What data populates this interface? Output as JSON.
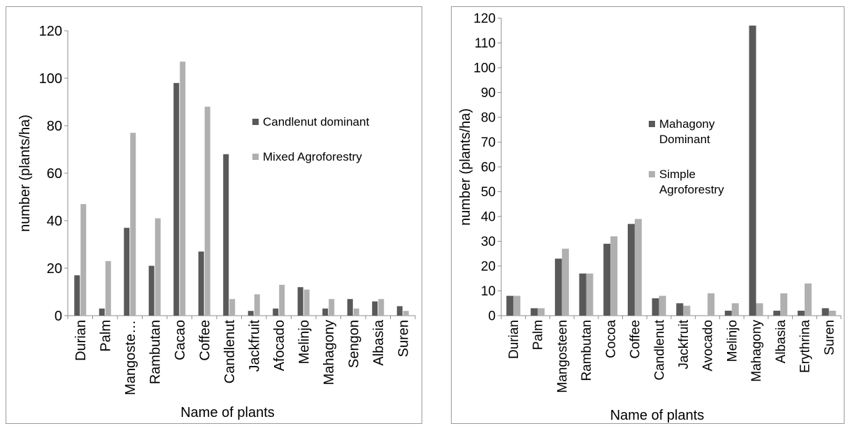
{
  "colors": {
    "dark": "#595959",
    "light": "#b0b0b0",
    "axis": "#8c8c8c"
  },
  "chart_data": [
    {
      "type": "bar",
      "xlabel": "Name of plants",
      "ylabel": "number  (plants/ha)",
      "ylim": [
        0,
        120
      ],
      "yticks": [
        0,
        20,
        40,
        60,
        80,
        100,
        120
      ],
      "grid": false,
      "legend_position": "right",
      "categories": [
        "Durian",
        "Palm",
        "Mangoste…",
        "Rambutan",
        "Cacao",
        "Coffee",
        "Candlenut",
        "Jackfruit",
        "Afocado",
        "Melinjo",
        "Mahagony",
        "Sengon",
        "Albasia",
        "Suren"
      ],
      "series": [
        {
          "name": "Candlenut dominant",
          "color": "#595959",
          "values": [
            17,
            3,
            37,
            21,
            98,
            27,
            68,
            2,
            3,
            12,
            3,
            7,
            6,
            4
          ]
        },
        {
          "name": "Mixed Agroforestry",
          "color": "#b0b0b0",
          "values": [
            47,
            23,
            77,
            41,
            107,
            88,
            7,
            9,
            13,
            11,
            7,
            3,
            7,
            2
          ]
        }
      ]
    },
    {
      "type": "bar",
      "xlabel": "Name of plants",
      "ylabel": "number (plants/ha)",
      "ylim": [
        0,
        120
      ],
      "yticks": [
        0,
        10,
        20,
        30,
        40,
        50,
        60,
        70,
        80,
        90,
        100,
        110,
        120
      ],
      "grid": false,
      "legend_position": "right",
      "categories": [
        "Durian",
        "Palm",
        "Mangosteen",
        "Rambutan",
        "Cocoa",
        "Coffee",
        "Candlenut",
        "Jackfruit",
        "Avocado",
        "Melinjo",
        "Mahagony",
        "Albasia",
        "Erythrina",
        "Suren"
      ],
      "series": [
        {
          "name": "Mahagony Dominant",
          "legend_lines": [
            "Mahagony",
            "Dominant"
          ],
          "color": "#595959",
          "values": [
            8,
            3,
            23,
            17,
            29,
            37,
            7,
            5,
            0,
            2,
            117,
            2,
            2,
            3
          ]
        },
        {
          "name": "Simple Agroforestry",
          "legend_lines": [
            "Simple",
            "Agroforestry"
          ],
          "color": "#b0b0b0",
          "values": [
            8,
            3,
            27,
            17,
            32,
            39,
            8,
            4,
            9,
            5,
            5,
            9,
            13,
            2
          ]
        }
      ]
    }
  ]
}
